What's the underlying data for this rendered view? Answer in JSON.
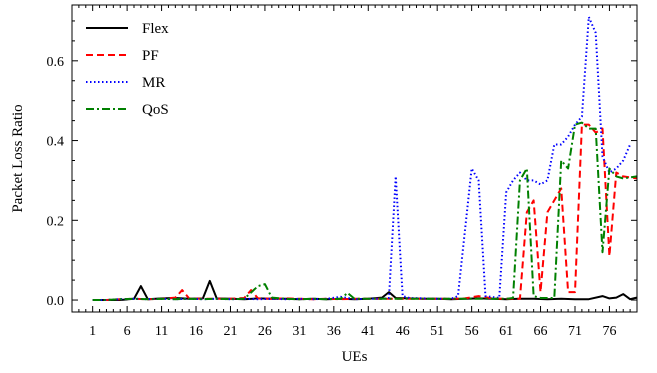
{
  "chart_data": {
    "type": "line",
    "title": "",
    "xlabel": "UEs",
    "ylabel": "Packet Loss Ratio",
    "xlim": [
      -2,
      80
    ],
    "ylim": [
      -0.03,
      0.74
    ],
    "x_ticks": [
      1,
      6,
      11,
      16,
      21,
      26,
      31,
      36,
      41,
      46,
      51,
      56,
      61,
      66,
      71,
      76
    ],
    "y_ticks": [
      0.0,
      0.2,
      0.4,
      0.6
    ],
    "y_tick_labels": [
      "0.0",
      "0.2",
      "0.4",
      "0.6"
    ],
    "grid": false,
    "legend_position": "top-left",
    "series": [
      {
        "name": "Flex",
        "color": "#000000",
        "dash": "solid",
        "points": [
          [
            1,
            0.0
          ],
          [
            3,
            0.0
          ],
          [
            5,
            0.0
          ],
          [
            7,
            0.003
          ],
          [
            8,
            0.035
          ],
          [
            9,
            0.002
          ],
          [
            11,
            0.004
          ],
          [
            13,
            0.005
          ],
          [
            15,
            0.003
          ],
          [
            17,
            0.004
          ],
          [
            18,
            0.048
          ],
          [
            19,
            0.004
          ],
          [
            21,
            0.003
          ],
          [
            23,
            0.002
          ],
          [
            25,
            0.004
          ],
          [
            27,
            0.003
          ],
          [
            29,
            0.003
          ],
          [
            31,
            0.002
          ],
          [
            33,
            0.003
          ],
          [
            35,
            0.002
          ],
          [
            37,
            0.003
          ],
          [
            39,
            0.002
          ],
          [
            41,
            0.003
          ],
          [
            43,
            0.006
          ],
          [
            44,
            0.02
          ],
          [
            45,
            0.005
          ],
          [
            47,
            0.004
          ],
          [
            49,
            0.003
          ],
          [
            51,
            0.003
          ],
          [
            53,
            0.002
          ],
          [
            55,
            0.003
          ],
          [
            57,
            0.004
          ],
          [
            59,
            0.003
          ],
          [
            61,
            0.002
          ],
          [
            63,
            0.003
          ],
          [
            65,
            0.003
          ],
          [
            67,
            0.002
          ],
          [
            69,
            0.003
          ],
          [
            71,
            0.002
          ],
          [
            73,
            0.002
          ],
          [
            75,
            0.01
          ],
          [
            76,
            0.004
          ],
          [
            77,
            0.006
          ],
          [
            78,
            0.015
          ],
          [
            79,
            0.002
          ],
          [
            80,
            0.006
          ]
        ]
      },
      {
        "name": "PF",
        "color": "#ff0000",
        "dash": "dashed",
        "points": [
          [
            1,
            0.0
          ],
          [
            3,
            0.0
          ],
          [
            5,
            0.002
          ],
          [
            7,
            0.003
          ],
          [
            9,
            0.002
          ],
          [
            11,
            0.003
          ],
          [
            13,
            0.006
          ],
          [
            14,
            0.025
          ],
          [
            15,
            0.004
          ],
          [
            17,
            0.003
          ],
          [
            19,
            0.003
          ],
          [
            21,
            0.003
          ],
          [
            23,
            0.005
          ],
          [
            24,
            0.025
          ],
          [
            25,
            0.004
          ],
          [
            27,
            0.003
          ],
          [
            29,
            0.004
          ],
          [
            31,
            0.003
          ],
          [
            33,
            0.002
          ],
          [
            35,
            0.003
          ],
          [
            37,
            0.002
          ],
          [
            39,
            0.003
          ],
          [
            41,
            0.003
          ],
          [
            43,
            0.003
          ],
          [
            45,
            0.003
          ],
          [
            47,
            0.003
          ],
          [
            49,
            0.003
          ],
          [
            51,
            0.003
          ],
          [
            53,
            0.003
          ],
          [
            55,
            0.004
          ],
          [
            57,
            0.01
          ],
          [
            59,
            0.004
          ],
          [
            61,
            0.003
          ],
          [
            63,
            0.003
          ],
          [
            64,
            0.22
          ],
          [
            65,
            0.25
          ],
          [
            66,
            0.02
          ],
          [
            67,
            0.22
          ],
          [
            69,
            0.28
          ],
          [
            70,
            0.02
          ],
          [
            71,
            0.02
          ],
          [
            72,
            0.44
          ],
          [
            73,
            0.44
          ],
          [
            74,
            0.42
          ],
          [
            75,
            0.43
          ],
          [
            76,
            0.11
          ],
          [
            77,
            0.32
          ],
          [
            78,
            0.31
          ],
          [
            80,
            0.305
          ]
        ]
      },
      {
        "name": "MR",
        "color": "#0000ff",
        "dash": "dotted",
        "points": [
          [
            1,
            0.0
          ],
          [
            3,
            0.0
          ],
          [
            5,
            0.002
          ],
          [
            7,
            0.003
          ],
          [
            9,
            0.002
          ],
          [
            11,
            0.003
          ],
          [
            13,
            0.002
          ],
          [
            15,
            0.003
          ],
          [
            17,
            0.002
          ],
          [
            19,
            0.003
          ],
          [
            21,
            0.002
          ],
          [
            23,
            0.003
          ],
          [
            25,
            0.002
          ],
          [
            27,
            0.003
          ],
          [
            29,
            0.002
          ],
          [
            31,
            0.003
          ],
          [
            33,
            0.002
          ],
          [
            35,
            0.003
          ],
          [
            37,
            0.008
          ],
          [
            39,
            0.002
          ],
          [
            41,
            0.003
          ],
          [
            43,
            0.003
          ],
          [
            44,
            0.005
          ],
          [
            45,
            0.31
          ],
          [
            46,
            0.01
          ],
          [
            47,
            0.005
          ],
          [
            49,
            0.004
          ],
          [
            51,
            0.003
          ],
          [
            53,
            0.003
          ],
          [
            54,
            0.01
          ],
          [
            56,
            0.33
          ],
          [
            57,
            0.3
          ],
          [
            58,
            0.01
          ],
          [
            60,
            0.005
          ],
          [
            61,
            0.27
          ],
          [
            62,
            0.3
          ],
          [
            63,
            0.32
          ],
          [
            64,
            0.3
          ],
          [
            65,
            0.3
          ],
          [
            66,
            0.29
          ],
          [
            67,
            0.3
          ],
          [
            68,
            0.39
          ],
          [
            69,
            0.39
          ],
          [
            70,
            0.41
          ],
          [
            71,
            0.44
          ],
          [
            72,
            0.46
          ],
          [
            73,
            0.71
          ],
          [
            74,
            0.67
          ],
          [
            75,
            0.36
          ],
          [
            76,
            0.32
          ],
          [
            77,
            0.33
          ],
          [
            78,
            0.35
          ],
          [
            79,
            0.39
          ]
        ]
      },
      {
        "name": "QoS",
        "color": "#008000",
        "dash": "dashdot",
        "points": [
          [
            1,
            0.0
          ],
          [
            3,
            0.0
          ],
          [
            5,
            0.002
          ],
          [
            7,
            0.003
          ],
          [
            9,
            0.002
          ],
          [
            11,
            0.003
          ],
          [
            13,
            0.002
          ],
          [
            15,
            0.003
          ],
          [
            17,
            0.002
          ],
          [
            19,
            0.003
          ],
          [
            21,
            0.002
          ],
          [
            23,
            0.003
          ],
          [
            25,
            0.035
          ],
          [
            26,
            0.04
          ],
          [
            27,
            0.006
          ],
          [
            29,
            0.003
          ],
          [
            31,
            0.002
          ],
          [
            33,
            0.003
          ],
          [
            35,
            0.002
          ],
          [
            37,
            0.003
          ],
          [
            38,
            0.018
          ],
          [
            39,
            0.003
          ],
          [
            41,
            0.003
          ],
          [
            43,
            0.003
          ],
          [
            45,
            0.003
          ],
          [
            47,
            0.003
          ],
          [
            49,
            0.003
          ],
          [
            51,
            0.003
          ],
          [
            53,
            0.003
          ],
          [
            55,
            0.003
          ],
          [
            57,
            0.003
          ],
          [
            59,
            0.003
          ],
          [
            61,
            0.003
          ],
          [
            62,
            0.005
          ],
          [
            63,
            0.3
          ],
          [
            64,
            0.33
          ],
          [
            65,
            0.01
          ],
          [
            66,
            0.005
          ],
          [
            68,
            0.005
          ],
          [
            69,
            0.35
          ],
          [
            70,
            0.33
          ],
          [
            71,
            0.44
          ],
          [
            72,
            0.445
          ],
          [
            73,
            0.43
          ],
          [
            74,
            0.43
          ],
          [
            75,
            0.12
          ],
          [
            76,
            0.33
          ],
          [
            77,
            0.31
          ],
          [
            78,
            0.305
          ],
          [
            80,
            0.31
          ]
        ]
      }
    ]
  }
}
